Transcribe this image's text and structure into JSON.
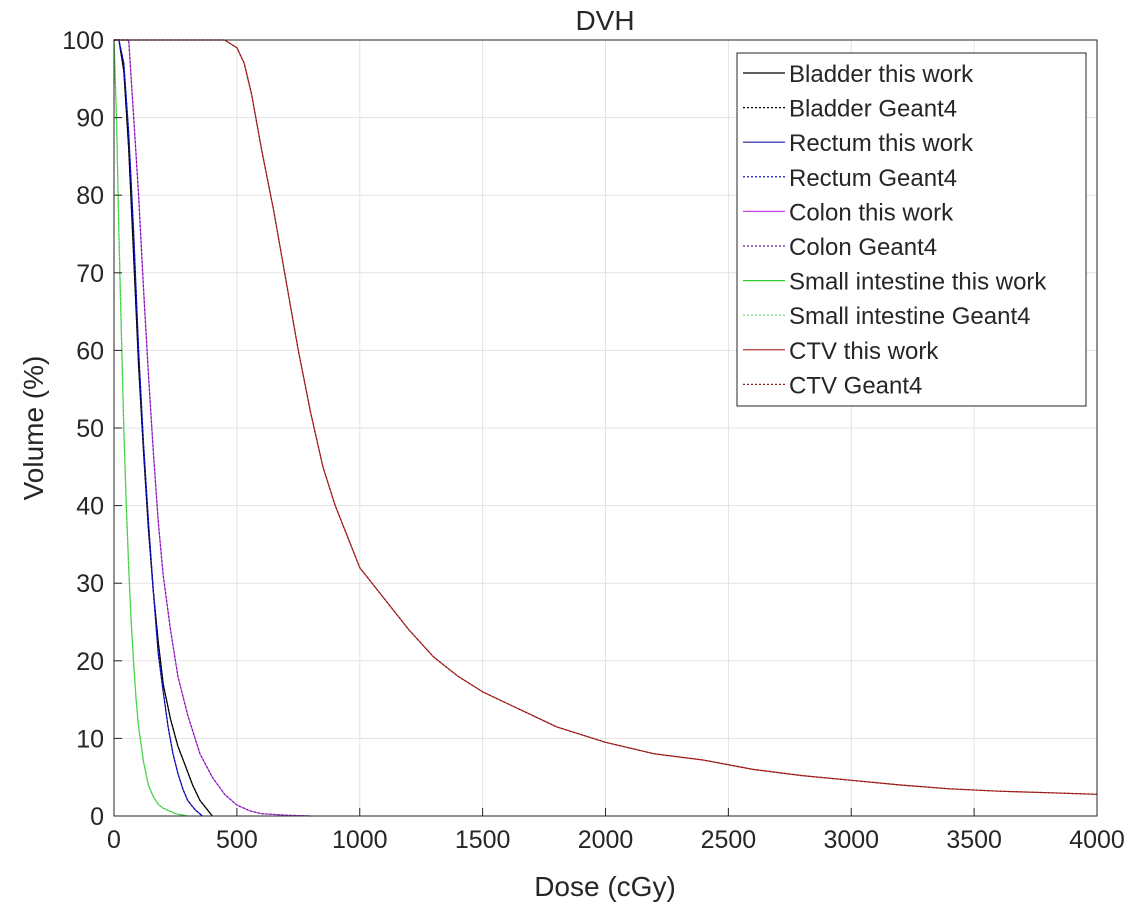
{
  "chart_data": {
    "type": "line",
    "title": "DVH",
    "xlabel": "Dose (cGy)",
    "ylabel": "Volume (%)",
    "xlim": [
      0,
      4000
    ],
    "ylim": [
      0,
      100
    ],
    "xticks": [
      0,
      500,
      1000,
      1500,
      2000,
      2500,
      3000,
      3500,
      4000
    ],
    "yticks": [
      0,
      10,
      20,
      30,
      40,
      50,
      60,
      70,
      80,
      90,
      100
    ],
    "grid": true,
    "legend_position": "top-right",
    "series": [
      {
        "name": "Bladder this work",
        "color": "#000000",
        "dash": "solid",
        "points": [
          [
            0,
            100
          ],
          [
            20,
            100
          ],
          [
            40,
            96
          ],
          [
            60,
            86
          ],
          [
            80,
            72
          ],
          [
            100,
            58
          ],
          [
            120,
            47
          ],
          [
            140,
            37
          ],
          [
            160,
            29
          ],
          [
            180,
            22.5
          ],
          [
            200,
            17
          ],
          [
            230,
            12.5
          ],
          [
            260,
            9
          ],
          [
            290,
            6.5
          ],
          [
            320,
            4
          ],
          [
            350,
            2
          ],
          [
            380,
            0.8
          ],
          [
            400,
            0
          ]
        ]
      },
      {
        "name": "Bladder Geant4",
        "color": "#000000",
        "dash": "dotted",
        "points": [
          [
            0,
            100
          ],
          [
            20,
            100
          ],
          [
            40,
            96
          ],
          [
            60,
            86
          ],
          [
            80,
            72
          ],
          [
            100,
            58
          ],
          [
            120,
            47
          ],
          [
            140,
            37
          ],
          [
            160,
            29
          ],
          [
            180,
            22.5
          ],
          [
            200,
            17
          ],
          [
            230,
            12.5
          ],
          [
            260,
            9
          ],
          [
            290,
            6.5
          ],
          [
            320,
            4
          ],
          [
            350,
            2
          ],
          [
            380,
            0.8
          ],
          [
            400,
            0
          ]
        ]
      },
      {
        "name": "Rectum this work",
        "color": "#1f1fa0",
        "dash": "solid",
        "points": [
          [
            0,
            100
          ],
          [
            20,
            100
          ],
          [
            40,
            97
          ],
          [
            60,
            88
          ],
          [
            80,
            75
          ],
          [
            100,
            60
          ],
          [
            120,
            48
          ],
          [
            140,
            38
          ],
          [
            160,
            29
          ],
          [
            180,
            21
          ],
          [
            200,
            16
          ],
          [
            220,
            11.5
          ],
          [
            240,
            8
          ],
          [
            260,
            5.5
          ],
          [
            280,
            3.5
          ],
          [
            300,
            2
          ],
          [
            330,
            0.8
          ],
          [
            360,
            0
          ]
        ]
      },
      {
        "name": "Rectum Geant4",
        "color": "#0000cc",
        "dash": "dotted",
        "points": [
          [
            0,
            100
          ],
          [
            20,
            100
          ],
          [
            40,
            97
          ],
          [
            60,
            88
          ],
          [
            80,
            75
          ],
          [
            100,
            60
          ],
          [
            120,
            48
          ],
          [
            140,
            38
          ],
          [
            160,
            29
          ],
          [
            180,
            21
          ],
          [
            200,
            16
          ],
          [
            220,
            11.5
          ],
          [
            240,
            8
          ],
          [
            260,
            5.5
          ],
          [
            280,
            3.5
          ],
          [
            300,
            2
          ],
          [
            330,
            0.8
          ],
          [
            360,
            0
          ]
        ]
      },
      {
        "name": "Colon this work",
        "color": "#cc44ee",
        "dash": "solid",
        "points": [
          [
            0,
            100
          ],
          [
            60,
            100
          ],
          [
            80,
            90
          ],
          [
            100,
            80
          ],
          [
            120,
            68
          ],
          [
            140,
            57
          ],
          [
            160,
            47
          ],
          [
            180,
            38
          ],
          [
            200,
            31
          ],
          [
            230,
            24
          ],
          [
            260,
            18
          ],
          [
            300,
            13
          ],
          [
            350,
            8
          ],
          [
            400,
            5
          ],
          [
            450,
            2.8
          ],
          [
            500,
            1.4
          ],
          [
            550,
            0.7
          ],
          [
            600,
            0.3
          ],
          [
            700,
            0.1
          ],
          [
            800,
            0
          ]
        ]
      },
      {
        "name": "Colon Geant4",
        "color": "#6a1b9a",
        "dash": "dotted",
        "points": [
          [
            0,
            100
          ],
          [
            60,
            100
          ],
          [
            80,
            90
          ],
          [
            100,
            80
          ],
          [
            120,
            68
          ],
          [
            140,
            57
          ],
          [
            160,
            47
          ],
          [
            180,
            38
          ],
          [
            200,
            31
          ],
          [
            230,
            24
          ],
          [
            260,
            18
          ],
          [
            300,
            13
          ],
          [
            350,
            8
          ],
          [
            400,
            5
          ],
          [
            450,
            2.8
          ],
          [
            500,
            1.4
          ],
          [
            550,
            0.7
          ],
          [
            600,
            0.3
          ],
          [
            700,
            0.1
          ],
          [
            800,
            0
          ]
        ]
      },
      {
        "name": "Small intestine this work",
        "color": "#33cc33",
        "dash": "solid",
        "points": [
          [
            0,
            100
          ],
          [
            10,
            90
          ],
          [
            20,
            75
          ],
          [
            30,
            62
          ],
          [
            40,
            50
          ],
          [
            50,
            40
          ],
          [
            60,
            32
          ],
          [
            70,
            25
          ],
          [
            80,
            19.5
          ],
          [
            90,
            15
          ],
          [
            100,
            11.5
          ],
          [
            120,
            7
          ],
          [
            140,
            4
          ],
          [
            160,
            2.5
          ],
          [
            180,
            1.5
          ],
          [
            200,
            1
          ],
          [
            250,
            0.3
          ],
          [
            300,
            0
          ]
        ]
      },
      {
        "name": "Small intestine Geant4",
        "color": "#66dd66",
        "dash": "dotted",
        "points": [
          [
            0,
            100
          ],
          [
            10,
            90
          ],
          [
            20,
            75
          ],
          [
            30,
            62
          ],
          [
            40,
            50
          ],
          [
            50,
            40
          ],
          [
            60,
            32
          ],
          [
            70,
            25
          ],
          [
            80,
            19.5
          ],
          [
            90,
            15
          ],
          [
            100,
            11.5
          ],
          [
            120,
            7
          ],
          [
            140,
            4
          ],
          [
            160,
            2.5
          ],
          [
            180,
            1.5
          ],
          [
            200,
            1
          ],
          [
            250,
            0.3
          ],
          [
            300,
            0
          ]
        ]
      },
      {
        "name": "CTV this work",
        "color": "#b22222",
        "dash": "solid",
        "points": [
          [
            0,
            100
          ],
          [
            450,
            100
          ],
          [
            500,
            99
          ],
          [
            530,
            97
          ],
          [
            560,
            93
          ],
          [
            600,
            86
          ],
          [
            650,
            78
          ],
          [
            700,
            69
          ],
          [
            750,
            60
          ],
          [
            800,
            52
          ],
          [
            850,
            45
          ],
          [
            900,
            40
          ],
          [
            950,
            36
          ],
          [
            1000,
            32
          ],
          [
            1100,
            28
          ],
          [
            1200,
            24
          ],
          [
            1300,
            20.5
          ],
          [
            1400,
            18
          ],
          [
            1500,
            16
          ],
          [
            1600,
            14.5
          ],
          [
            1700,
            13
          ],
          [
            1800,
            11.5
          ],
          [
            2000,
            9.5
          ],
          [
            2200,
            8
          ],
          [
            2400,
            7.2
          ],
          [
            2600,
            6
          ],
          [
            2800,
            5.2
          ],
          [
            3000,
            4.6
          ],
          [
            3200,
            4
          ],
          [
            3400,
            3.5
          ],
          [
            3600,
            3.2
          ],
          [
            3800,
            3
          ],
          [
            4000,
            2.8
          ]
        ]
      },
      {
        "name": "CTV Geant4",
        "color": "#8b1a1a",
        "dash": "dotted",
        "points": [
          [
            0,
            100
          ],
          [
            450,
            100
          ],
          [
            500,
            99
          ],
          [
            530,
            97
          ],
          [
            560,
            93
          ],
          [
            600,
            86
          ],
          [
            650,
            78
          ],
          [
            700,
            69
          ],
          [
            750,
            60
          ],
          [
            800,
            52
          ],
          [
            850,
            45
          ],
          [
            900,
            40
          ],
          [
            950,
            36
          ],
          [
            1000,
            32
          ],
          [
            1100,
            28
          ],
          [
            1200,
            24
          ],
          [
            1300,
            20.5
          ],
          [
            1400,
            18
          ],
          [
            1500,
            16
          ],
          [
            1600,
            14.5
          ],
          [
            1700,
            13
          ],
          [
            1800,
            11.5
          ],
          [
            2000,
            9.5
          ],
          [
            2200,
            8
          ],
          [
            2400,
            7.2
          ],
          [
            2600,
            6
          ],
          [
            2800,
            5.2
          ],
          [
            3000,
            4.6
          ],
          [
            3200,
            4
          ],
          [
            3400,
            3.5
          ],
          [
            3600,
            3.2
          ],
          [
            3800,
            3
          ],
          [
            4000,
            2.8
          ]
        ]
      }
    ]
  }
}
